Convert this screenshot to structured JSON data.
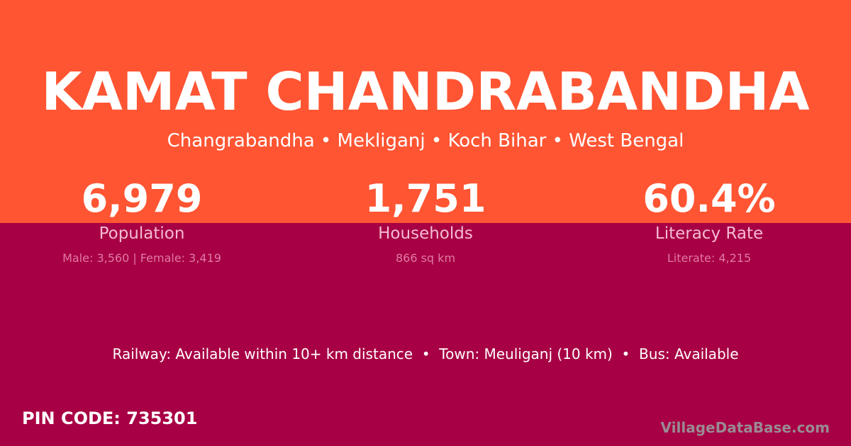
{
  "title": "KAMAT CHANDRABANDHA",
  "subtitle": "Changrabandha • Mekliganj • Koch Bihar • West Bengal",
  "stats": [
    {
      "value": "6,979",
      "label": "Population",
      "sub": "Male: 3,560 | Female: 3,419"
    },
    {
      "value": "1,751",
      "label": "Households",
      "sub": "866 sq km"
    },
    {
      "value": "60.4%",
      "label": "Literacy Rate",
      "sub": "Literate: 4,215"
    }
  ],
  "info": "Railway: Available within 10+ km distance  •  Town: Meuliganj (10 km)  •  Bus: Available",
  "pin": "PIN CODE: 735301",
  "brand": "VillageDataBase.com",
  "colors": {
    "top": "#ff5533",
    "bottom": "#a80044"
  }
}
